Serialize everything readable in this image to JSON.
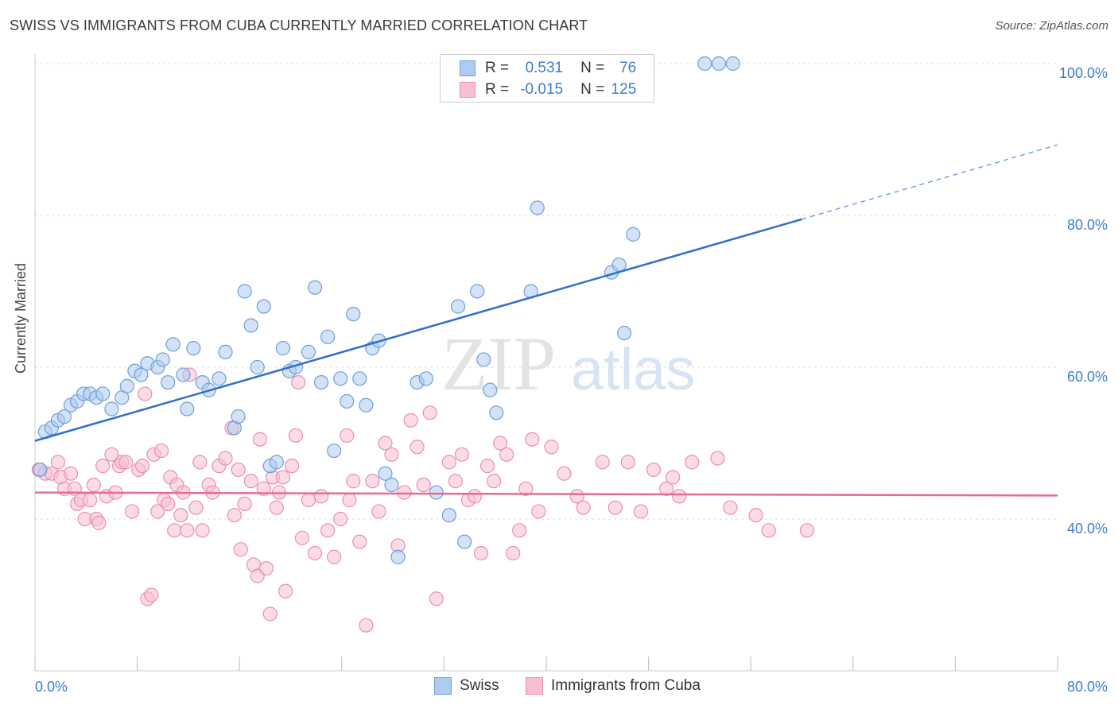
{
  "title": "SWISS VS IMMIGRANTS FROM CUBA CURRENTLY MARRIED CORRELATION CHART",
  "source": "Source: ZipAtlas.com",
  "watermark": {
    "zip": "ZIP",
    "atlas": "atlas"
  },
  "legend_top": {
    "rows": [
      {
        "r_label": "R =",
        "r_value": "0.531",
        "n_label": "N =",
        "n_value": "76"
      },
      {
        "r_label": "R =",
        "r_value": "-0.015",
        "n_label": "N =",
        "n_value": "125"
      }
    ]
  },
  "bottom_legend": [
    {
      "label": "Swiss"
    },
    {
      "label": "Immigrants from Cuba"
    }
  ],
  "colors": {
    "swiss_fill": "#aecbf0",
    "swiss_stroke": "#6e9fda",
    "swiss_line": "#2f6fcc",
    "cuba_fill": "#f7bfd2",
    "cuba_stroke": "#e98fb0",
    "cuba_line": "#e56b96",
    "axis_text": "#3a7dd0",
    "grid": "#dddddd"
  },
  "chart_data": {
    "type": "scatter",
    "title": "SWISS VS IMMIGRANTS FROM CUBA CURRENTLY MARRIED CORRELATION CHART",
    "xlabel": "",
    "ylabel": "Currently Married",
    "xlim": [
      0,
      80
    ],
    "ylim": [
      20,
      102
    ],
    "x_tick_labels": [
      "0.0%",
      "80.0%"
    ],
    "y_ticks": [
      40,
      60,
      80,
      100
    ],
    "y_tick_labels": [
      "40.0%",
      "60.0%",
      "80.0%",
      "100.0%"
    ],
    "grid": true,
    "legend_position": "top-center",
    "series": [
      {
        "name": "Swiss",
        "r": 0.531,
        "n": 76,
        "trend": {
          "x0": 0,
          "y0": 50.3,
          "x1": 60,
          "y1": 79.5,
          "dashed_to_x": 80,
          "dashed_to_y": 89.3
        },
        "points": [
          [
            0.8,
            51.5
          ],
          [
            1.3,
            52.0
          ],
          [
            1.8,
            53.0
          ],
          [
            2.3,
            53.5
          ],
          [
            2.8,
            55.0
          ],
          [
            3.3,
            55.5
          ],
          [
            3.8,
            56.5
          ],
          [
            4.3,
            56.5
          ],
          [
            4.8,
            56.0
          ],
          [
            5.3,
            56.5
          ],
          [
            6.0,
            54.5
          ],
          [
            6.8,
            56.0
          ],
          [
            7.2,
            57.5
          ],
          [
            7.8,
            59.5
          ],
          [
            8.3,
            59.0
          ],
          [
            8.8,
            60.5
          ],
          [
            9.6,
            60.0
          ],
          [
            10.0,
            61.0
          ],
          [
            10.4,
            58.0
          ],
          [
            10.8,
            63.0
          ],
          [
            11.6,
            59.0
          ],
          [
            11.9,
            54.5
          ],
          [
            12.4,
            62.5
          ],
          [
            13.1,
            58.0
          ],
          [
            13.6,
            57.0
          ],
          [
            14.4,
            58.5
          ],
          [
            14.9,
            62.0
          ],
          [
            15.6,
            52.0
          ],
          [
            15.9,
            53.5
          ],
          [
            16.4,
            70.0
          ],
          [
            16.9,
            65.5
          ],
          [
            17.4,
            60.0
          ],
          [
            17.9,
            68.0
          ],
          [
            18.4,
            47.0
          ],
          [
            18.9,
            47.5
          ],
          [
            19.4,
            62.5
          ],
          [
            19.9,
            59.5
          ],
          [
            20.4,
            60.0
          ],
          [
            21.4,
            62.0
          ],
          [
            21.9,
            70.5
          ],
          [
            22.4,
            58.0
          ],
          [
            22.9,
            64.0
          ],
          [
            23.4,
            49.0
          ],
          [
            23.9,
            58.5
          ],
          [
            24.4,
            55.5
          ],
          [
            24.9,
            67.0
          ],
          [
            25.4,
            58.5
          ],
          [
            25.9,
            55.0
          ],
          [
            26.4,
            62.5
          ],
          [
            26.9,
            63.5
          ],
          [
            27.4,
            46.0
          ],
          [
            27.9,
            44.5
          ],
          [
            28.4,
            35.0
          ],
          [
            29.9,
            58.0
          ],
          [
            30.6,
            58.5
          ],
          [
            31.4,
            43.5
          ],
          [
            32.4,
            40.5
          ],
          [
            33.1,
            68.0
          ],
          [
            33.6,
            37.0
          ],
          [
            34.6,
            70.0
          ],
          [
            35.1,
            61.0
          ],
          [
            35.6,
            57.0
          ],
          [
            36.1,
            54.0
          ],
          [
            38.8,
            70.0
          ],
          [
            39.3,
            81.0
          ],
          [
            42.2,
            100.0
          ],
          [
            45.1,
            72.5
          ],
          [
            45.7,
            73.5
          ],
          [
            46.1,
            64.5
          ],
          [
            46.8,
            77.5
          ],
          [
            52.4,
            100.0
          ],
          [
            53.5,
            100.0
          ],
          [
            54.6,
            100.0
          ],
          [
            0.4,
            46.5
          ]
        ]
      },
      {
        "name": "Immigrants from Cuba",
        "r": -0.015,
        "n": 125,
        "trend": {
          "x0": 0,
          "y0": 43.5,
          "x1": 80,
          "y1": 43.1
        },
        "points": [
          [
            0.3,
            46.5
          ],
          [
            0.8,
            46.0
          ],
          [
            1.3,
            46.0
          ],
          [
            1.8,
            47.5
          ],
          [
            2.0,
            45.5
          ],
          [
            2.3,
            44.0
          ],
          [
            2.8,
            46.0
          ],
          [
            3.1,
            44.0
          ],
          [
            3.3,
            42.0
          ],
          [
            3.6,
            42.5
          ],
          [
            3.9,
            40.0
          ],
          [
            4.3,
            42.5
          ],
          [
            4.6,
            44.5
          ],
          [
            4.8,
            40.0
          ],
          [
            5.0,
            39.5
          ],
          [
            5.3,
            47.0
          ],
          [
            5.6,
            43.0
          ],
          [
            6.0,
            48.5
          ],
          [
            6.3,
            43.5
          ],
          [
            6.6,
            47.0
          ],
          [
            6.8,
            47.5
          ],
          [
            7.1,
            47.5
          ],
          [
            7.6,
            41.0
          ],
          [
            8.1,
            46.5
          ],
          [
            8.4,
            47.0
          ],
          [
            8.6,
            56.5
          ],
          [
            8.8,
            29.5
          ],
          [
            9.1,
            30.0
          ],
          [
            9.3,
            48.5
          ],
          [
            9.6,
            41.0
          ],
          [
            9.9,
            49.0
          ],
          [
            10.1,
            42.5
          ],
          [
            10.4,
            42.0
          ],
          [
            10.6,
            45.5
          ],
          [
            10.9,
            38.5
          ],
          [
            11.1,
            44.5
          ],
          [
            11.4,
            40.5
          ],
          [
            11.6,
            43.5
          ],
          [
            11.9,
            38.5
          ],
          [
            12.1,
            59.0
          ],
          [
            12.6,
            41.5
          ],
          [
            12.9,
            47.5
          ],
          [
            13.1,
            38.5
          ],
          [
            13.6,
            44.5
          ],
          [
            13.9,
            43.5
          ],
          [
            14.4,
            47.0
          ],
          [
            14.9,
            48.0
          ],
          [
            15.4,
            52.0
          ],
          [
            15.6,
            40.5
          ],
          [
            15.9,
            46.5
          ],
          [
            16.1,
            36.0
          ],
          [
            16.4,
            42.0
          ],
          [
            16.9,
            45.0
          ],
          [
            17.1,
            34.0
          ],
          [
            17.4,
            32.5
          ],
          [
            17.6,
            50.5
          ],
          [
            17.9,
            44.0
          ],
          [
            18.1,
            33.5
          ],
          [
            18.4,
            27.5
          ],
          [
            18.6,
            45.5
          ],
          [
            18.9,
            41.5
          ],
          [
            19.1,
            43.5
          ],
          [
            19.4,
            45.5
          ],
          [
            19.6,
            30.5
          ],
          [
            20.1,
            47.0
          ],
          [
            20.4,
            51.0
          ],
          [
            20.6,
            58.0
          ],
          [
            20.9,
            37.5
          ],
          [
            21.4,
            42.5
          ],
          [
            21.9,
            35.5
          ],
          [
            22.4,
            43.0
          ],
          [
            22.9,
            38.5
          ],
          [
            23.4,
            35.0
          ],
          [
            23.9,
            40.0
          ],
          [
            24.4,
            51.0
          ],
          [
            24.6,
            42.5
          ],
          [
            24.9,
            45.0
          ],
          [
            25.4,
            37.0
          ],
          [
            25.9,
            26.0
          ],
          [
            26.4,
            45.0
          ],
          [
            26.9,
            41.0
          ],
          [
            27.4,
            50.0
          ],
          [
            27.9,
            48.5
          ],
          [
            28.4,
            36.5
          ],
          [
            28.9,
            43.5
          ],
          [
            29.4,
            53.0
          ],
          [
            29.9,
            49.5
          ],
          [
            30.4,
            44.5
          ],
          [
            30.9,
            54.0
          ],
          [
            31.4,
            29.5
          ],
          [
            32.4,
            47.5
          ],
          [
            32.9,
            45.0
          ],
          [
            33.4,
            48.5
          ],
          [
            33.9,
            42.5
          ],
          [
            34.4,
            43.0
          ],
          [
            34.9,
            35.5
          ],
          [
            35.4,
            47.0
          ],
          [
            35.9,
            45.0
          ],
          [
            36.4,
            50.0
          ],
          [
            36.9,
            48.5
          ],
          [
            37.4,
            35.5
          ],
          [
            37.9,
            38.5
          ],
          [
            38.4,
            44.0
          ],
          [
            38.9,
            50.5
          ],
          [
            39.4,
            41.0
          ],
          [
            40.4,
            49.5
          ],
          [
            41.4,
            46.0
          ],
          [
            42.4,
            43.0
          ],
          [
            42.9,
            41.5
          ],
          [
            44.4,
            47.5
          ],
          [
            45.4,
            41.5
          ],
          [
            46.4,
            47.5
          ],
          [
            47.4,
            41.0
          ],
          [
            48.4,
            46.5
          ],
          [
            49.4,
            44.0
          ],
          [
            49.9,
            45.5
          ],
          [
            50.4,
            43.0
          ],
          [
            51.4,
            47.5
          ],
          [
            53.4,
            48.0
          ],
          [
            54.4,
            41.5
          ],
          [
            56.4,
            40.5
          ],
          [
            57.4,
            38.5
          ],
          [
            60.4,
            38.5
          ]
        ]
      }
    ]
  }
}
